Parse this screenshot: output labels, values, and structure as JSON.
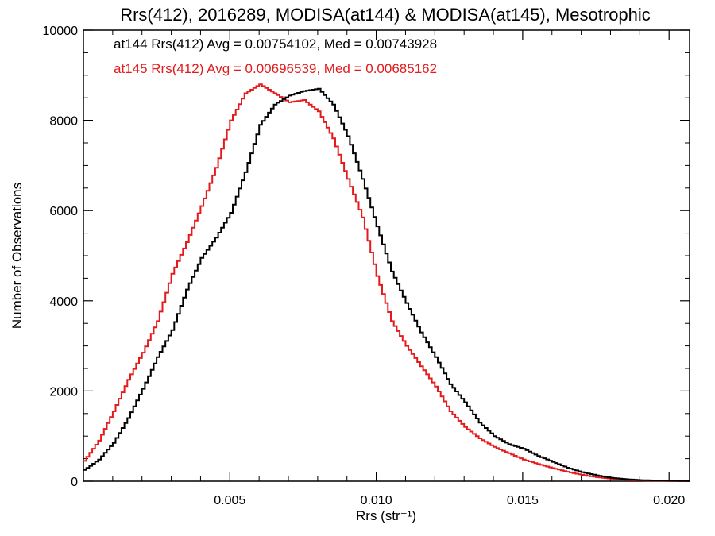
{
  "chart_data": {
    "type": "line",
    "title": "Rrs(412), 2016289, MODISA(at144) & MODISA(at145), Mesotrophic",
    "xlabel": "Rrs (str⁻¹)",
    "ylabel": "Number of Observations",
    "xlim": [
      0.0,
      0.0207
    ],
    "ylim": [
      0,
      10000
    ],
    "x_ticks": [
      "0.005",
      "0.010",
      "0.015",
      "0.020"
    ],
    "x_tick_values": [
      0.005,
      0.01,
      0.015,
      0.02
    ],
    "y_ticks": [
      "0",
      "2000",
      "4000",
      "6000",
      "8000",
      "10000"
    ],
    "y_tick_values": [
      0,
      2000,
      4000,
      6000,
      8000,
      10000
    ],
    "grid": false,
    "legend_position": "top-left",
    "series": [
      {
        "name": "at144",
        "color": "#000000",
        "annotation": "at144 Rrs(412) Avg = 0.00754102, Med = 0.00743928",
        "x": [
          0.0,
          0.0005,
          0.001,
          0.0015,
          0.002,
          0.0025,
          0.003,
          0.0035,
          0.004,
          0.0045,
          0.005,
          0.0055,
          0.006,
          0.0065,
          0.007,
          0.0075,
          0.008,
          0.0085,
          0.009,
          0.0095,
          0.01,
          0.0105,
          0.011,
          0.0115,
          0.012,
          0.0125,
          0.013,
          0.0135,
          0.014,
          0.0145,
          0.015,
          0.0155,
          0.016,
          0.0165,
          0.017,
          0.0175,
          0.018,
          0.0185,
          0.019,
          0.0195,
          0.02,
          0.0207
        ],
        "y": [
          250,
          480,
          850,
          1400,
          2050,
          2750,
          3350,
          4250,
          4950,
          5400,
          5950,
          6850,
          7900,
          8350,
          8550,
          8650,
          8700,
          8350,
          7650,
          6700,
          5650,
          4650,
          3950,
          3300,
          2750,
          2150,
          1750,
          1300,
          1000,
          820,
          720,
          560,
          430,
          300,
          200,
          130,
          75,
          45,
          25,
          15,
          10,
          5
        ]
      },
      {
        "name": "at145",
        "color": "#e41a1c",
        "annotation": "at145 Rrs(412) Avg = 0.00696539, Med = 0.00685162",
        "x": [
          0.0,
          0.0005,
          0.001,
          0.0015,
          0.002,
          0.0025,
          0.003,
          0.0035,
          0.004,
          0.0045,
          0.005,
          0.0055,
          0.006,
          0.0065,
          0.007,
          0.0075,
          0.008,
          0.0085,
          0.009,
          0.0095,
          0.01,
          0.0105,
          0.011,
          0.0115,
          0.012,
          0.0125,
          0.013,
          0.0135,
          0.014,
          0.0145,
          0.015,
          0.0155,
          0.016,
          0.0165,
          0.017,
          0.0175,
          0.018,
          0.0185,
          0.019,
          0.0195,
          0.02,
          0.0207
        ],
        "y": [
          450,
          900,
          1550,
          2250,
          2850,
          3550,
          4600,
          5300,
          6100,
          6950,
          8000,
          8600,
          8800,
          8600,
          8400,
          8450,
          8200,
          7600,
          6700,
          5850,
          4550,
          3550,
          3000,
          2550,
          2100,
          1550,
          1200,
          950,
          760,
          620,
          480,
          380,
          290,
          210,
          140,
          90,
          55,
          30,
          18,
          10,
          6,
          3
        ]
      }
    ]
  }
}
